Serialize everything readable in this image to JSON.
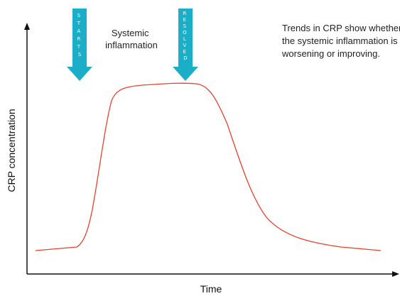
{
  "axes": {
    "y_label": "CRP concentration",
    "x_label": "Time"
  },
  "arrows": [
    {
      "id": "starts",
      "label": "STARTS",
      "color": "#1aaec8"
    },
    {
      "id": "resolved",
      "label": "RESOLVED",
      "color": "#1aaec8"
    }
  ],
  "annotations": {
    "inflammation": [
      "Systemic",
      "inflammation"
    ],
    "note": [
      "Trends in CRP show whether",
      "the systemic inflammation is",
      "worsening or improving."
    ]
  },
  "curve": {
    "color": "#e8412c",
    "description_points": [
      {
        "t": 0.0,
        "level": 0.06
      },
      {
        "t": 0.12,
        "level": 0.08
      },
      {
        "t": 0.18,
        "level": 0.28
      },
      {
        "t": 0.24,
        "level": 0.86
      },
      {
        "t": 0.3,
        "level": 0.95
      },
      {
        "t": 0.45,
        "level": 0.97
      },
      {
        "t": 0.52,
        "level": 0.95
      },
      {
        "t": 0.6,
        "level": 0.7
      },
      {
        "t": 0.7,
        "level": 0.25
      },
      {
        "t": 0.8,
        "level": 0.13
      },
      {
        "t": 1.0,
        "level": 0.05
      }
    ]
  }
}
